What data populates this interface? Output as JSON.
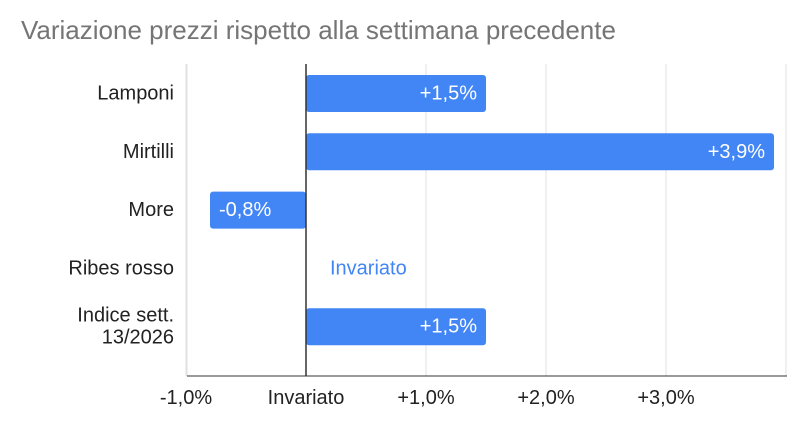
{
  "chart_data": {
    "type": "bar",
    "orientation": "horizontal",
    "title": "Variazione prezzi rispetto alla settimana precedente",
    "xlabel": "",
    "ylabel": "",
    "categories": [
      "Lamponi",
      "Mirtilli",
      "More",
      "Ribes rosso",
      "Indice sett. 13/2026"
    ],
    "category_lines": [
      [
        "Lamponi"
      ],
      [
        "Mirtilli"
      ],
      [
        "More"
      ],
      [
        "Ribes rosso"
      ],
      [
        "Indice sett.",
        "13/2026"
      ]
    ],
    "values": [
      1.5,
      3.9,
      -0.8,
      0.0,
      1.5
    ],
    "data_labels": [
      "+1,5%",
      "+3,9%",
      "-0,8%",
      "Invariato",
      "+1,5%"
    ],
    "xlim": [
      -1.0,
      4.0
    ],
    "x_ticks": [
      -1.0,
      0.0,
      1.0,
      2.0,
      3.0
    ],
    "x_tick_labels": [
      "-1,0%",
      "Invariato",
      "+1,0%",
      "+2,0%",
      "+3,0%"
    ],
    "grid": "vertical",
    "legend": "none",
    "colors": {
      "bar": "#4285f4",
      "grid": "#e0e0e0",
      "axis": "#333333",
      "title": "#757575",
      "text": "#222222"
    }
  }
}
